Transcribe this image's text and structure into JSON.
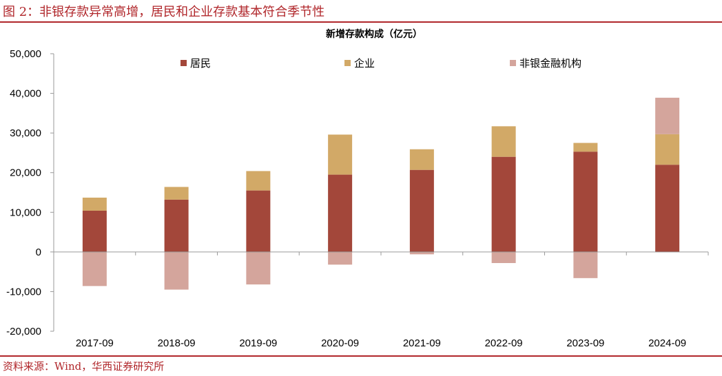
{
  "figure": {
    "title": "图 2：非银存款异常高增，居民和企业存款基本符合季节性",
    "source": "资料来源：Wind，华西证券研究所"
  },
  "colors": {
    "resident": "#a3473a",
    "enterprise": "#d2a967",
    "nonbank": "#d4a59c",
    "brand": "#b0262a",
    "axis": "#999999"
  },
  "chart_data": {
    "type": "bar",
    "stacked": true,
    "title": "新增存款构成（亿元）",
    "categories": [
      "2017-09",
      "2018-09",
      "2019-09",
      "2020-09",
      "2021-09",
      "2022-09",
      "2023-09",
      "2024-09"
    ],
    "series": [
      {
        "name": "居民",
        "values": [
          10400,
          13200,
          15500,
          19500,
          20700,
          24000,
          25300,
          22000
        ]
      },
      {
        "name": "企业",
        "values": [
          3300,
          3200,
          4900,
          10100,
          5200,
          7700,
          2200,
          7700
        ]
      },
      {
        "name": "非银金融机构",
        "values": [
          -8600,
          -9500,
          -8200,
          -3200,
          -600,
          -2800,
          -6600,
          9200
        ]
      }
    ],
    "ylim": [
      -20000,
      50000
    ],
    "yticks": [
      -20000,
      -10000,
      0,
      10000,
      20000,
      30000,
      40000,
      50000
    ],
    "ytick_labels": [
      "-20,000",
      "-10,000",
      "0",
      "10,000",
      "20,000",
      "30,000",
      "40,000",
      "50,000"
    ],
    "legend_position": "top",
    "xlabel": "",
    "ylabel": ""
  }
}
